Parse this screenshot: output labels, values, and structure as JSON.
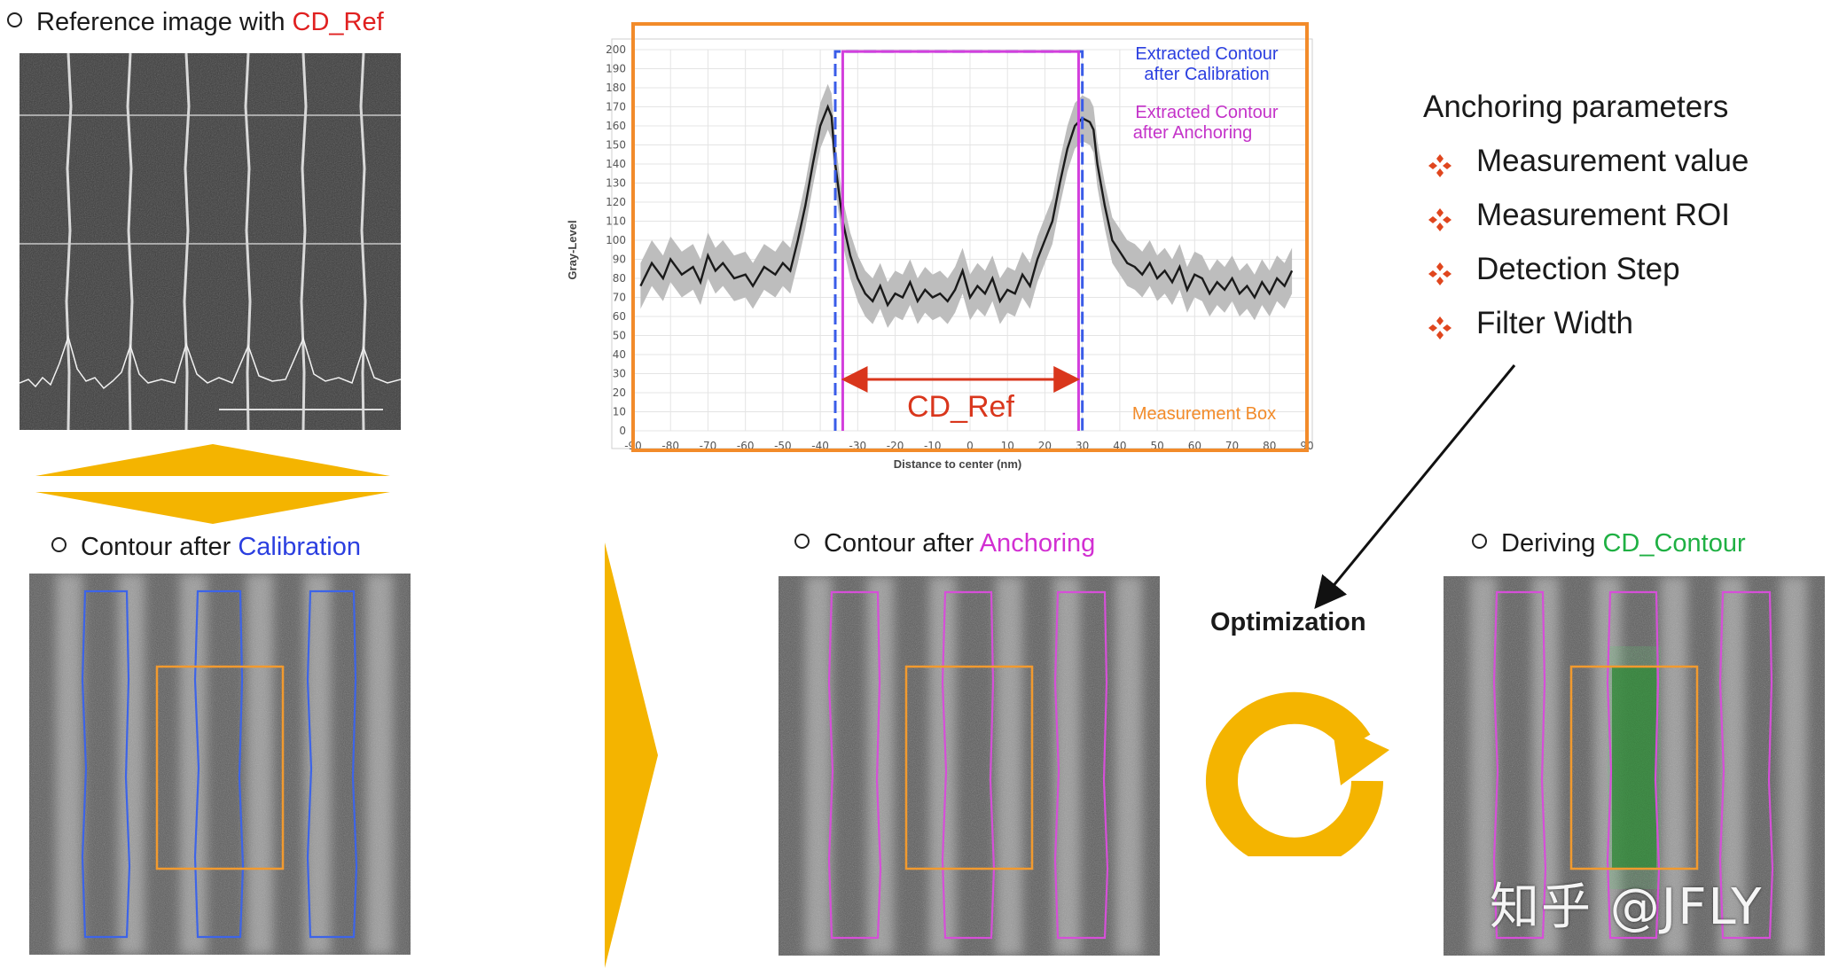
{
  "captions": {
    "reference": {
      "prefix": "Reference image with ",
      "highlight": "CD_Ref",
      "color": "#e02020"
    },
    "calibration": {
      "prefix": "Contour after ",
      "highlight": "Calibration",
      "color": "#2b3fe0"
    },
    "anchoring": {
      "prefix": "Contour after ",
      "highlight": "Anchoring",
      "color": "#d22fd2"
    },
    "deriving": {
      "prefix": "Deriving ",
      "highlight": "CD_Contour",
      "color": "#1fb043"
    }
  },
  "anchoring_parameters": {
    "title": "Anchoring parameters",
    "items": [
      "Measurement value",
      "Measurement ROI",
      "Detection Step",
      "Filter Width"
    ],
    "icon": "four-diamond-bullet-icon",
    "icon_color": "#e0461e"
  },
  "optimization_label": "Optimization",
  "watermark": "知乎 @JFLY",
  "chart_labels": {
    "calibration_legend": [
      "Extracted Contour",
      "after Calibration"
    ],
    "anchoring_legend": [
      "Extracted Contour",
      "after Anchoring"
    ],
    "measurement_box": "Measurement Box",
    "cd_ref": "CD_Ref"
  },
  "chart_data": {
    "type": "line",
    "title": "",
    "xlabel": "Distance to center (nm)",
    "ylabel": "Gray-Level",
    "xlim": [
      -90,
      90
    ],
    "ylim": [
      0,
      200
    ],
    "x_ticks": [
      -90,
      -80,
      -70,
      -60,
      -50,
      -40,
      -30,
      -20,
      -10,
      0,
      10,
      20,
      30,
      40,
      50,
      60,
      70,
      80,
      90
    ],
    "y_ticks": [
      0,
      10,
      20,
      30,
      40,
      50,
      60,
      70,
      80,
      90,
      100,
      110,
      120,
      130,
      140,
      150,
      160,
      170,
      180,
      190,
      200
    ],
    "grid": true,
    "series": [
      {
        "name": "Gray-Level profile",
        "color": "#1a1a1a",
        "band_color": "#b8b8b8",
        "x": [
          -88,
          -85,
          -82,
          -80,
          -77,
          -74,
          -72,
          -70,
          -68,
          -66,
          -63,
          -60,
          -58,
          -55,
          -52,
          -50,
          -48,
          -46,
          -44,
          -42,
          -40,
          -38,
          -37,
          -36,
          -34,
          -32,
          -30,
          -28,
          -26,
          -24,
          -22,
          -20,
          -18,
          -16,
          -14,
          -12,
          -10,
          -8,
          -6,
          -4,
          -2,
          0,
          2,
          4,
          6,
          8,
          10,
          12,
          14,
          16,
          18,
          20,
          22,
          24,
          26,
          28,
          30,
          32,
          33,
          34,
          36,
          38,
          40,
          42,
          44,
          46,
          48,
          50,
          52,
          54,
          56,
          58,
          60,
          62,
          64,
          66,
          68,
          70,
          72,
          74,
          76,
          78,
          80,
          82,
          84,
          86
        ],
        "y": [
          76,
          88,
          80,
          90,
          82,
          86,
          78,
          92,
          84,
          88,
          80,
          82,
          76,
          86,
          82,
          88,
          84,
          100,
          118,
          140,
          160,
          170,
          165,
          140,
          110,
          92,
          80,
          72,
          68,
          76,
          66,
          72,
          70,
          78,
          68,
          74,
          70,
          72,
          68,
          74,
          84,
          70,
          76,
          72,
          80,
          68,
          74,
          72,
          82,
          76,
          90,
          100,
          110,
          130,
          148,
          160,
          164,
          162,
          158,
          140,
          118,
          100,
          94,
          88,
          86,
          82,
          88,
          80,
          84,
          78,
          86,
          74,
          82,
          80,
          72,
          78,
          74,
          80,
          72,
          76,
          70,
          78,
          72,
          80,
          76,
          84
        ]
      }
    ],
    "vertical_markers": [
      {
        "name": "Extracted Contour after Calibration",
        "x": [
          -36,
          30
        ],
        "color": "#3a5ce8",
        "style": "dashed"
      },
      {
        "name": "Extracted Contour after Anchoring",
        "x": [
          -34,
          29
        ],
        "color": "#d33fdc",
        "style": "solid"
      }
    ],
    "annotation": {
      "label": "CD_Ref",
      "from": -33,
      "to": 28,
      "y": 27,
      "color": "#d9361c"
    },
    "measurement_box_color": "#f28b2a"
  }
}
